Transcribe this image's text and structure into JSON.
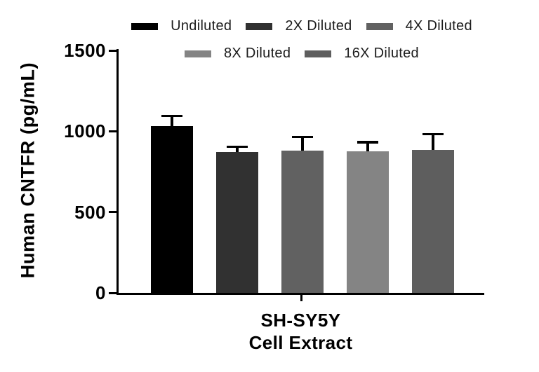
{
  "chart_data": {
    "type": "bar",
    "title": "",
    "ylabel": "Human CNTFR (pg/mL)",
    "xlabel_line1": "SH-SY5Y",
    "xlabel_line2": "Cell Extract",
    "categories": [
      "Undiluted",
      "2X Diluted",
      "4X Diluted",
      "8X Diluted",
      "16X Diluted"
    ],
    "values": [
      1030,
      870,
      880,
      875,
      885
    ],
    "errors": [
      65,
      33,
      84,
      58,
      96
    ],
    "bar_colors": [
      "#000000",
      "#313131",
      "#616161",
      "#848484",
      "#5e5e5e"
    ],
    "ylim": [
      0,
      1500
    ],
    "yticks": [
      0,
      500,
      1000,
      1500
    ],
    "grid": false,
    "legend_position": "top",
    "error_bar_direction": "up",
    "axis_color": "#000000",
    "error_color": "#000000",
    "background_color": "#ffffff"
  }
}
